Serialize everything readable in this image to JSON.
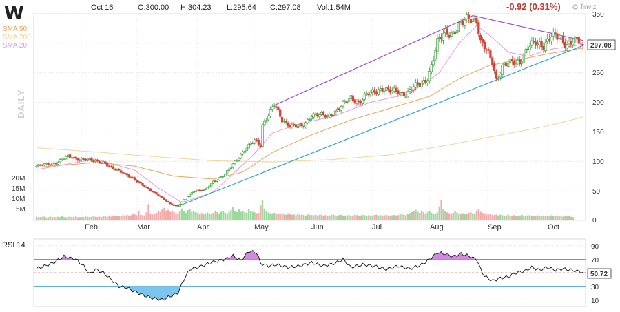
{
  "header": {
    "ticker": "W",
    "date": "Oct 16",
    "open": "O:300.00",
    "high": "H:304.23",
    "low": "L:295.64",
    "close": "C:297.08",
    "volume": "Vol:1.54M",
    "change": "-0.92 (0.31%)",
    "brand": "finviz"
  },
  "legend": [
    {
      "label": "SMA 50",
      "color": "#e8a25a"
    },
    {
      "label": "SMA 200",
      "color": "#f2d39a"
    },
    {
      "label": "SMA 20",
      "color": "#e89ad8"
    }
  ],
  "timeframe_label": "DAILY",
  "price_axis": {
    "ticks": [
      "350",
      "300",
      "250",
      "200",
      "150",
      "100",
      "50",
      "0"
    ]
  },
  "volume_axis": {
    "ticks": [
      "20M",
      "15M",
      "10M",
      "5M"
    ]
  },
  "months": [
    "Feb",
    "Mar",
    "Apr",
    "May",
    "Jun",
    "Jul",
    "Aug",
    "Sep",
    "Oct"
  ],
  "price_badge": "297.08",
  "rsi": {
    "title": "RSI 14",
    "value_badge": "50.72",
    "ticks": [
      "90",
      "70",
      "50",
      "30",
      "10"
    ],
    "overbought": 70,
    "oversold": 30
  },
  "colors": {
    "up": "#3aa03a",
    "down": "#d2443a",
    "vol_up": "#9fd89f",
    "vol_down": "#f5aaaa",
    "trend_upper": "#9b3fd6",
    "trend_lower": "#2d9bd4",
    "rsi_line": "#111111",
    "rsi_ob_fill": "#c86cd8",
    "rsi_os_fill": "#5bb8e8"
  },
  "chart_data": {
    "type": "candlestick",
    "period": "Daily",
    "ylim": [
      0,
      350
    ],
    "anchors": [
      [
        0,
        92
      ],
      [
        10,
        98
      ],
      [
        16,
        108
      ],
      [
        22,
        104
      ],
      [
        28,
        101
      ],
      [
        34,
        99
      ],
      [
        38,
        88
      ],
      [
        44,
        82
      ],
      [
        50,
        68
      ],
      [
        56,
        56
      ],
      [
        60,
        46
      ],
      [
        64,
        38
      ],
      [
        68,
        28
      ],
      [
        72,
        24
      ],
      [
        76,
        38
      ],
      [
        80,
        50
      ],
      [
        86,
        52
      ],
      [
        90,
        66
      ],
      [
        96,
        78
      ],
      [
        100,
        95
      ],
      [
        106,
        120
      ],
      [
        111,
        135
      ],
      [
        114,
        128
      ],
      [
        115,
        162
      ],
      [
        119,
        185
      ],
      [
        121,
        195
      ],
      [
        125,
        170
      ],
      [
        129,
        162
      ],
      [
        133,
        158
      ],
      [
        136,
        160
      ],
      [
        140,
        180
      ],
      [
        144,
        178
      ],
      [
        148,
        176
      ],
      [
        152,
        185
      ],
      [
        156,
        196
      ],
      [
        160,
        208
      ],
      [
        164,
        200
      ],
      [
        168,
        212
      ],
      [
        172,
        218
      ],
      [
        176,
        224
      ],
      [
        180,
        218
      ],
      [
        184,
        218
      ],
      [
        188,
        214
      ],
      [
        192,
        225
      ],
      [
        196,
        232
      ],
      [
        199,
        242
      ],
      [
        201,
        262
      ],
      [
        204,
        300
      ],
      [
        208,
        320
      ],
      [
        212,
        318
      ],
      [
        216,
        330
      ],
      [
        220,
        345
      ],
      [
        224,
        340
      ],
      [
        226,
        300
      ],
      [
        228,
        292
      ],
      [
        232,
        270
      ],
      [
        234,
        240
      ],
      [
        237,
        260
      ],
      [
        242,
        268
      ],
      [
        246,
        270
      ],
      [
        250,
        292
      ],
      [
        254,
        300
      ],
      [
        258,
        298
      ],
      [
        262,
        312
      ],
      [
        266,
        308
      ],
      [
        270,
        300
      ],
      [
        274,
        305
      ],
      [
        278,
        297.08
      ]
    ],
    "volume_millions": [
      1.8,
      1.5,
      1.7,
      1.6,
      2.0,
      1.4,
      1.6,
      1.9,
      1.5,
      1.7,
      1.6,
      1.8,
      1.5,
      2.2,
      1.6,
      1.4,
      1.8,
      1.9,
      1.7,
      1.6,
      2.0,
      1.5,
      1.6,
      1.7,
      1.5,
      1.9,
      1.8,
      1.6,
      1.7,
      2.1,
      1.8,
      1.7,
      1.9,
      1.6,
      2.4,
      2.0,
      1.8,
      2.2,
      1.9,
      2.6,
      2.1,
      2.3,
      2.5,
      2.2,
      2.8,
      2.4,
      3.0,
      2.6,
      2.7,
      3.5,
      3.2,
      2.8,
      5.5,
      3.0,
      2.8,
      2.6,
      4.5,
      9.5,
      3.8,
      3.2,
      3.6,
      4.2,
      5.0,
      4.8,
      6.5,
      7.2,
      5.5,
      6.0,
      4.8,
      5.2,
      4.6,
      3.8,
      4.0,
      5.5,
      6.8,
      5.0,
      4.2,
      5.8,
      6.5,
      4.8,
      5.2,
      4.6,
      4.2,
      3.8,
      4.0,
      3.5,
      3.9,
      4.4,
      3.6,
      3.8,
      4.2,
      5.0,
      4.6,
      3.9,
      4.8,
      5.5,
      4.2,
      3.8,
      4.6,
      5.8,
      7.5,
      5.2,
      4.6,
      6.2,
      4.8,
      5.0,
      4.5,
      4.2,
      6.5,
      5.0,
      4.8,
      4.4,
      4.0,
      4.2,
      9.0,
      12.0,
      6.5,
      5.0,
      4.4,
      4.0,
      3.8,
      4.2,
      3.6,
      3.4,
      3.8,
      4.0,
      3.2,
      3.0,
      3.5,
      3.6,
      3.0,
      3.2,
      2.8,
      3.4,
      3.0,
      3.1,
      2.9,
      2.6,
      3.2,
      3.0,
      2.8,
      2.7,
      3.0,
      2.6,
      2.9,
      3.1,
      2.5,
      2.8,
      2.4,
      2.6,
      2.9,
      3.2,
      2.7,
      2.5,
      2.8,
      3.0,
      2.6,
      2.4,
      2.7,
      2.9,
      2.5,
      2.6,
      3.0,
      2.8,
      2.4,
      2.6,
      2.9,
      2.7,
      2.5,
      2.8,
      2.6,
      2.4,
      2.9,
      3.1,
      2.6,
      2.8,
      2.5,
      2.7,
      3.0,
      2.6,
      2.4,
      2.7,
      2.9,
      2.6,
      2.8,
      3.2,
      3.6,
      3.0,
      2.8,
      3.4,
      4.0,
      4.6,
      5.2,
      6.0,
      4.8,
      4.2,
      5.5,
      4.6,
      3.8,
      4.4,
      5.0,
      4.2,
      3.6,
      3.8,
      4.4,
      8.0,
      12.0,
      6.5,
      5.0,
      4.5,
      4.0,
      3.6,
      4.2,
      5.0,
      4.4,
      3.8,
      3.6,
      4.0,
      3.5,
      3.8,
      4.2,
      4.6,
      3.9,
      3.5,
      5.5,
      6.5,
      4.8,
      4.2,
      3.8,
      3.5,
      3.2,
      3.6,
      3.0,
      2.8,
      3.2,
      2.6,
      3.0,
      2.8,
      2.5,
      2.7,
      3.0,
      2.6,
      2.4,
      2.8,
      2.5,
      2.3,
      2.6,
      2.9,
      2.4,
      2.2,
      2.6,
      2.8,
      2.4,
      2.3,
      2.5,
      2.7,
      2.2,
      2.4,
      2.6,
      2.3,
      2.1,
      2.5,
      2.7,
      2.4,
      2.2,
      2.6,
      2.3,
      2.0,
      1.9,
      2.2,
      2.4,
      2.1,
      1.8,
      1.54
    ],
    "sma": {
      "SMA 20": [
        [
          0,
          86
        ],
        [
          30,
          104
        ],
        [
          50,
          85
        ],
        [
          62,
          55
        ],
        [
          74,
          30
        ],
        [
          90,
          48
        ],
        [
          110,
          110
        ],
        [
          120,
          148
        ],
        [
          135,
          165
        ],
        [
          150,
          175
        ],
        [
          170,
          200
        ],
        [
          190,
          215
        ],
        [
          205,
          250
        ],
        [
          215,
          300
        ],
        [
          224,
          330
        ],
        [
          232,
          310
        ],
        [
          240,
          285
        ],
        [
          250,
          278
        ],
        [
          262,
          290
        ],
        [
          278,
          298
        ]
      ],
      "SMA 50": [
        [
          0,
          90
        ],
        [
          30,
          98
        ],
        [
          50,
          92
        ],
        [
          70,
          75
        ],
        [
          90,
          70
        ],
        [
          105,
          82
        ],
        [
          120,
          115
        ],
        [
          140,
          145
        ],
        [
          160,
          170
        ],
        [
          180,
          190
        ],
        [
          200,
          210
        ],
        [
          215,
          240
        ],
        [
          230,
          262
        ],
        [
          245,
          272
        ],
        [
          260,
          282
        ],
        [
          278,
          292
        ]
      ],
      "SMA 200": [
        [
          0,
          123
        ],
        [
          30,
          116
        ],
        [
          60,
          108
        ],
        [
          90,
          101
        ],
        [
          120,
          99
        ],
        [
          150,
          103
        ],
        [
          180,
          111
        ],
        [
          210,
          128
        ],
        [
          240,
          147
        ],
        [
          260,
          160
        ],
        [
          278,
          175
        ]
      ]
    },
    "trendlines": [
      {
        "name": "upper",
        "points": [
          [
            121,
            195
          ],
          [
            222,
            347
          ],
          [
            278,
            305
          ]
        ]
      },
      {
        "name": "lower",
        "points": [
          [
            72,
            24
          ],
          [
            278,
            296
          ]
        ]
      }
    ],
    "rsi_anchors": [
      [
        0,
        56
      ],
      [
        8,
        64
      ],
      [
        14,
        74
      ],
      [
        20,
        70
      ],
      [
        24,
        60
      ],
      [
        27,
        48
      ],
      [
        30,
        55
      ],
      [
        34,
        50
      ],
      [
        38,
        40
      ],
      [
        42,
        30
      ],
      [
        46,
        28
      ],
      [
        50,
        22
      ],
      [
        56,
        15
      ],
      [
        60,
        12
      ],
      [
        64,
        10
      ],
      [
        68,
        15
      ],
      [
        72,
        20
      ],
      [
        75,
        40
      ],
      [
        78,
        55
      ],
      [
        82,
        58
      ],
      [
        86,
        62
      ],
      [
        90,
        66
      ],
      [
        96,
        70
      ],
      [
        100,
        75
      ],
      [
        104,
        68
      ],
      [
        108,
        82
      ],
      [
        112,
        80
      ],
      [
        114,
        64
      ],
      [
        118,
        60
      ],
      [
        122,
        62
      ],
      [
        128,
        58
      ],
      [
        134,
        60
      ],
      [
        140,
        65
      ],
      [
        146,
        60
      ],
      [
        152,
        64
      ],
      [
        156,
        70
      ],
      [
        160,
        58
      ],
      [
        166,
        62
      ],
      [
        172,
        60
      ],
      [
        178,
        55
      ],
      [
        184,
        60
      ],
      [
        190,
        56
      ],
      [
        196,
        62
      ],
      [
        200,
        70
      ],
      [
        204,
        80
      ],
      [
        208,
        78
      ],
      [
        212,
        74
      ],
      [
        216,
        78
      ],
      [
        220,
        75
      ],
      [
        222,
        72
      ],
      [
        224,
        70
      ],
      [
        226,
        55
      ],
      [
        228,
        45
      ],
      [
        232,
        38
      ],
      [
        236,
        42
      ],
      [
        240,
        44
      ],
      [
        244,
        50
      ],
      [
        248,
        52
      ],
      [
        252,
        58
      ],
      [
        256,
        54
      ],
      [
        260,
        58
      ],
      [
        264,
        54
      ],
      [
        268,
        56
      ],
      [
        272,
        54
      ],
      [
        276,
        52
      ],
      [
        278,
        50.72
      ]
    ]
  }
}
